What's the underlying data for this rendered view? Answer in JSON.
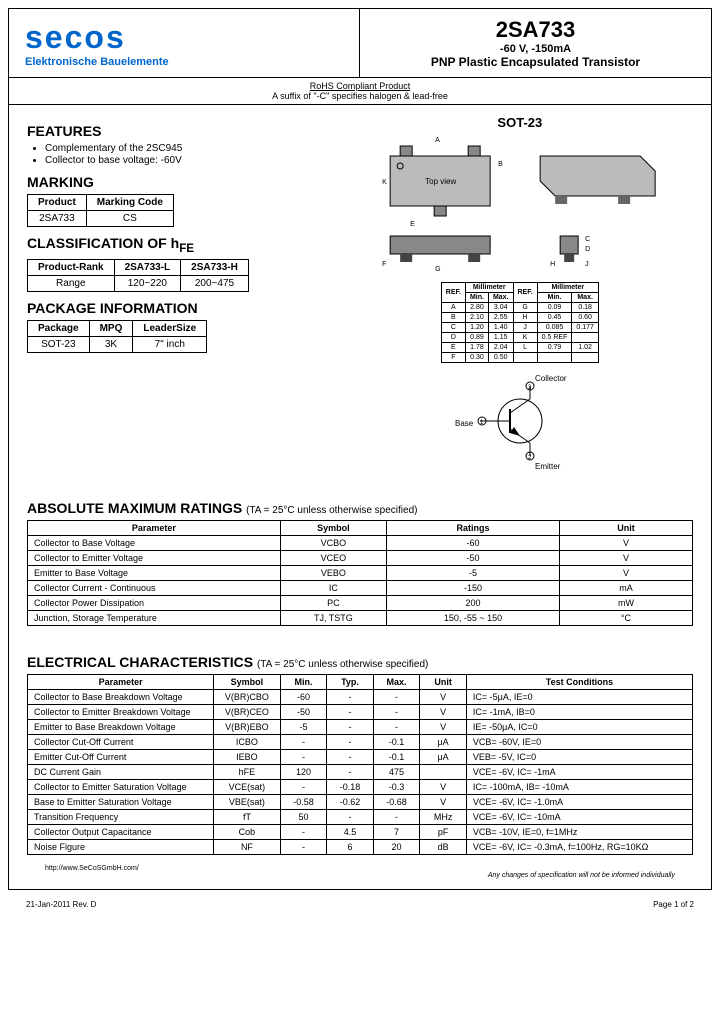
{
  "header": {
    "logo_text": "secos",
    "logo_tagline": "Elektronische Bauelemente",
    "part_number": "2SA733",
    "spec": "-60 V, -150mA",
    "description": "PNP Plastic Encapsulated Transistor"
  },
  "compliance": {
    "line1": "RoHS Compliant Product",
    "line2": "A suffix of \"-C\" specifies halogen & lead-free"
  },
  "features": {
    "title": "FEATURES",
    "items": [
      "Complementary of the 2SC945",
      "Collector to base voltage: -60V"
    ]
  },
  "marking": {
    "title": "MARKING",
    "headers": [
      "Product",
      "Marking Code"
    ],
    "rows": [
      [
        "2SA733",
        "CS"
      ]
    ]
  },
  "hfe": {
    "title": "CLASSIFICATION OF hFE",
    "headers": [
      "Product-Rank",
      "2SA733-L",
      "2SA733-H"
    ],
    "rows": [
      [
        "Range",
        "120~220",
        "200~475"
      ]
    ]
  },
  "package": {
    "title": "PACKAGE INFORMATION",
    "headers": [
      "Package",
      "MPQ",
      "LeaderSize"
    ],
    "rows": [
      [
        "SOT-23",
        "3K",
        "7\" inch"
      ]
    ]
  },
  "sot": {
    "label": "SOT-23"
  },
  "dimensions": {
    "headers": [
      "REF.",
      "Min.",
      "Max.",
      "REF.",
      "Min.",
      "Max."
    ],
    "subheader": "Millimeter",
    "rows": [
      [
        "A",
        "2.80",
        "3.04",
        "G",
        "0.09",
        "0.18"
      ],
      [
        "B",
        "2.10",
        "2.55",
        "H",
        "0.45",
        "0.60"
      ],
      [
        "C",
        "1.20",
        "1.40",
        "J",
        "0.085",
        "0.177"
      ],
      [
        "D",
        "0.89",
        "1.15",
        "K",
        "0.5 REF",
        ""
      ],
      [
        "E",
        "1.78",
        "2.04",
        "L",
        "0.79",
        "1.02"
      ],
      [
        "F",
        "0.30",
        "0.50",
        "",
        "",
        ""
      ]
    ]
  },
  "pinout": {
    "collector": "Collector",
    "base": "Base",
    "emitter": "Emitter"
  },
  "abs_max": {
    "title": "ABSOLUTE MAXIMUM RATINGS",
    "condition": "(TA = 25°C unless otherwise specified)",
    "headers": [
      "Parameter",
      "Symbol",
      "Ratings",
      "Unit"
    ],
    "rows": [
      [
        "Collector to Base Voltage",
        "VCBO",
        "-60",
        "V"
      ],
      [
        "Collector to Emitter Voltage",
        "VCEO",
        "-50",
        "V"
      ],
      [
        "Emitter to Base Voltage",
        "VEBO",
        "-5",
        "V"
      ],
      [
        "Collector Current - Continuous",
        "IC",
        "-150",
        "mA"
      ],
      [
        "Collector Power Dissipation",
        "PC",
        "200",
        "mW"
      ],
      [
        "Junction, Storage Temperature",
        "TJ, TSTG",
        "150, -55 ~ 150",
        "°C"
      ]
    ]
  },
  "elec": {
    "title": "ELECTRICAL CHARACTERISTICS",
    "condition": "(TA = 25°C unless otherwise specified)",
    "headers": [
      "Parameter",
      "Symbol",
      "Min.",
      "Typ.",
      "Max.",
      "Unit",
      "Test Conditions"
    ],
    "rows": [
      [
        "Collector to Base Breakdown Voltage",
        "V(BR)CBO",
        "-60",
        "-",
        "-",
        "V",
        "IC= -5μA, IE=0"
      ],
      [
        "Collector to Emitter Breakdown Voltage",
        "V(BR)CEO",
        "-50",
        "-",
        "-",
        "V",
        "IC= -1mA, IB=0"
      ],
      [
        "Emitter to Base Breakdown Voltage",
        "V(BR)EBO",
        "-5",
        "-",
        "-",
        "V",
        "IE= -50μA, IC=0"
      ],
      [
        "Collector Cut-Off Current",
        "ICBO",
        "-",
        "-",
        "-0.1",
        "μA",
        "VCB= -60V, IE=0"
      ],
      [
        "Emitter Cut-Off Current",
        "IEBO",
        "-",
        "-",
        "-0.1",
        "μA",
        "VEB= -5V, IC=0"
      ],
      [
        "DC Current Gain",
        "hFE",
        "120",
        "-",
        "475",
        "",
        "VCE= -6V, IC= -1mA"
      ],
      [
        "Collector to Emitter Saturation Voltage",
        "VCE(sat)",
        "-",
        "-0.18",
        "-0.3",
        "V",
        "IC= -100mA, IB= -10mA"
      ],
      [
        "Base to Emitter Saturation Voltage",
        "VBE(sat)",
        "-0.58",
        "-0.62",
        "-0.68",
        "V",
        "VCE= -6V, IC= -1.0mA"
      ],
      [
        "Transition Frequency",
        "fT",
        "50",
        "-",
        "-",
        "MHz",
        "VCE= -6V, IC= -10mA"
      ],
      [
        "Collector Output Capacitance",
        "Cob",
        "-",
        "4.5",
        "7",
        "pF",
        "VCB= -10V, IE=0, f=1MHz"
      ],
      [
        "Noise Figure",
        "NF",
        "-",
        "6",
        "20",
        "dB",
        "VCE= -6V, IC= -0.3mA, f=100Hz, RG=10KΩ"
      ]
    ]
  },
  "footer": {
    "url": "http://www.SeCoSGmbH.com/",
    "note": "Any changes of specification will not be informed individually",
    "date": "21-Jan-2011 Rev. D",
    "page": "Page 1 of 2"
  },
  "styling": {
    "border_color": "#000000",
    "logo_color": "#0066cc",
    "background": "#ffffff",
    "font_base": 10
  }
}
